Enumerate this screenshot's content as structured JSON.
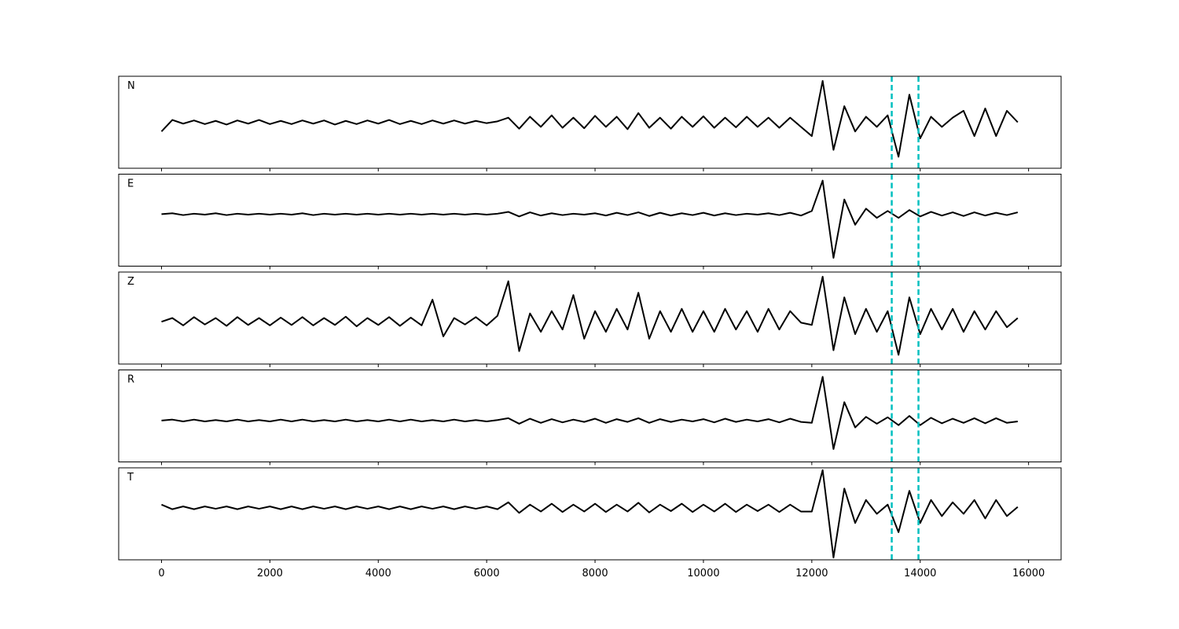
{
  "chart_data": [
    {
      "type": "line",
      "label": "N",
      "color": "#000000",
      "vlines": [
        13475,
        13968
      ],
      "vline_color": "#00bfbf",
      "xlim": [
        -790,
        16600
      ],
      "ylim": [
        -1,
        1
      ],
      "x": [
        0,
        200,
        400,
        600,
        800,
        1000,
        1200,
        1400,
        1600,
        1800,
        2000,
        2200,
        2400,
        2600,
        2800,
        3000,
        3200,
        3400,
        3600,
        3800,
        4000,
        4200,
        4400,
        4600,
        4800,
        5000,
        5200,
        5400,
        5600,
        5800,
        6000,
        6200,
        6400,
        6600,
        6800,
        7000,
        7200,
        7400,
        7600,
        7800,
        8000,
        8200,
        8400,
        8600,
        8800,
        9000,
        9200,
        9400,
        9600,
        9800,
        10000,
        10200,
        10400,
        10600,
        10800,
        11000,
        11200,
        11400,
        11600,
        11800,
        12000,
        12200,
        12400,
        12600,
        12800,
        13000,
        13200,
        13400,
        13600,
        13800,
        14000,
        14200,
        14400,
        14600,
        14800,
        15000,
        15200,
        15400,
        15600,
        15800
      ],
      "values": [
        -0.2,
        0.05,
        -0.03,
        0.04,
        -0.04,
        0.03,
        -0.05,
        0.04,
        -0.03,
        0.05,
        -0.04,
        0.03,
        -0.04,
        0.04,
        -0.03,
        0.04,
        -0.05,
        0.03,
        -0.04,
        0.04,
        -0.03,
        0.05,
        -0.04,
        0.03,
        -0.04,
        0.04,
        -0.03,
        0.04,
        -0.03,
        0.03,
        -0.02,
        0.02,
        0.1,
        -0.14,
        0.12,
        -0.1,
        0.15,
        -0.12,
        0.1,
        -0.13,
        0.14,
        -0.1,
        0.12,
        -0.15,
        0.2,
        -0.12,
        0.1,
        -0.14,
        0.12,
        -0.1,
        0.13,
        -0.12,
        0.1,
        -0.11,
        0.12,
        -0.1,
        0.1,
        -0.12,
        0.1,
        -0.1,
        -0.3,
        0.9,
        -0.6,
        0.35,
        -0.2,
        0.12,
        -0.1,
        0.15,
        -0.75,
        0.6,
        -0.35,
        0.12,
        -0.1,
        0.1,
        0.25,
        -0.3,
        0.3,
        -0.3,
        0.25,
        0.0
      ]
    },
    {
      "type": "line",
      "label": "E",
      "color": "#000000",
      "vlines": [
        13475,
        13968
      ],
      "vline_color": "#00bfbf",
      "xlim": [
        -790,
        16600
      ],
      "ylim": [
        -1,
        1
      ],
      "x": [
        0,
        200,
        400,
        600,
        800,
        1000,
        1200,
        1400,
        1600,
        1800,
        2000,
        2200,
        2400,
        2600,
        2800,
        3000,
        3200,
        3400,
        3600,
        3800,
        4000,
        4200,
        4400,
        4600,
        4800,
        5000,
        5200,
        5400,
        5600,
        5800,
        6000,
        6200,
        6400,
        6600,
        6800,
        7000,
        7200,
        7400,
        7600,
        7800,
        8000,
        8200,
        8400,
        8600,
        8800,
        9000,
        9200,
        9400,
        9600,
        9800,
        10000,
        10200,
        10400,
        10600,
        10800,
        11000,
        11200,
        11400,
        11600,
        11800,
        12000,
        12200,
        12400,
        12600,
        12800,
        13000,
        13200,
        13400,
        13600,
        13800,
        14000,
        14200,
        14400,
        14600,
        14800,
        15000,
        15200,
        15400,
        15600,
        15800
      ],
      "values": [
        0.13,
        0.15,
        0.11,
        0.14,
        0.12,
        0.15,
        0.11,
        0.14,
        0.12,
        0.14,
        0.12,
        0.14,
        0.12,
        0.15,
        0.11,
        0.14,
        0.12,
        0.14,
        0.12,
        0.14,
        0.12,
        0.14,
        0.12,
        0.14,
        0.12,
        0.14,
        0.12,
        0.14,
        0.12,
        0.14,
        0.12,
        0.14,
        0.18,
        0.08,
        0.17,
        0.1,
        0.15,
        0.11,
        0.14,
        0.12,
        0.15,
        0.1,
        0.16,
        0.11,
        0.17,
        0.09,
        0.16,
        0.1,
        0.15,
        0.11,
        0.16,
        0.1,
        0.15,
        0.11,
        0.14,
        0.12,
        0.15,
        0.11,
        0.16,
        0.1,
        0.2,
        0.86,
        -0.82,
        0.45,
        -0.1,
        0.25,
        0.05,
        0.2,
        0.05,
        0.22,
        0.08,
        0.18,
        0.1,
        0.17,
        0.09,
        0.17,
        0.1,
        0.16,
        0.11,
        0.17
      ]
    },
    {
      "type": "line",
      "label": "Z",
      "color": "#000000",
      "vlines": [
        13475,
        13968
      ],
      "vline_color": "#00bfbf",
      "xlim": [
        -790,
        16600
      ],
      "ylim": [
        -1,
        1
      ],
      "x": [
        0,
        200,
        400,
        600,
        800,
        1000,
        1200,
        1400,
        1600,
        1800,
        2000,
        2200,
        2400,
        2600,
        2800,
        3000,
        3200,
        3400,
        3600,
        3800,
        4000,
        4200,
        4400,
        4600,
        4800,
        5000,
        5200,
        5400,
        5600,
        5800,
        6000,
        6200,
        6400,
        6600,
        6800,
        7000,
        7200,
        7400,
        7600,
        7800,
        8000,
        8200,
        8400,
        8600,
        8800,
        9000,
        9200,
        9400,
        9600,
        9800,
        10000,
        10200,
        10400,
        10600,
        10800,
        11000,
        11200,
        11400,
        11600,
        11800,
        12000,
        12200,
        12400,
        12600,
        12800,
        13000,
        13200,
        13400,
        13600,
        13800,
        14000,
        14200,
        14400,
        14600,
        14800,
        15000,
        15200,
        15400,
        15600,
        15800
      ],
      "values": [
        -0.08,
        0.0,
        -0.16,
        0.02,
        -0.14,
        0.0,
        -0.17,
        0.02,
        -0.15,
        0.0,
        -0.16,
        0.01,
        -0.15,
        0.02,
        -0.16,
        0.0,
        -0.15,
        0.03,
        -0.18,
        0.0,
        -0.15,
        0.02,
        -0.17,
        0.01,
        -0.16,
        0.4,
        -0.4,
        0.0,
        -0.14,
        0.02,
        -0.16,
        0.05,
        0.8,
        -0.72,
        0.1,
        -0.3,
        0.15,
        -0.25,
        0.5,
        -0.45,
        0.15,
        -0.3,
        0.2,
        -0.25,
        0.55,
        -0.45,
        0.15,
        -0.3,
        0.2,
        -0.3,
        0.15,
        -0.3,
        0.2,
        -0.25,
        0.15,
        -0.3,
        0.2,
        -0.25,
        0.15,
        -0.1,
        -0.15,
        0.9,
        -0.7,
        0.45,
        -0.35,
        0.2,
        -0.3,
        0.15,
        -0.8,
        0.45,
        -0.35,
        0.2,
        -0.25,
        0.2,
        -0.3,
        0.15,
        -0.25,
        0.15,
        -0.2,
        0.0
      ]
    },
    {
      "type": "line",
      "label": "R",
      "color": "#000000",
      "vlines": [
        13475,
        13968
      ],
      "vline_color": "#00bfbf",
      "xlim": [
        -790,
        16600
      ],
      "ylim": [
        -1,
        1
      ],
      "x": [
        0,
        200,
        400,
        600,
        800,
        1000,
        1200,
        1400,
        1600,
        1800,
        2000,
        2200,
        2400,
        2600,
        2800,
        3000,
        3200,
        3400,
        3600,
        3800,
        4000,
        4200,
        4400,
        4600,
        4800,
        5000,
        5200,
        5400,
        5600,
        5800,
        6000,
        6200,
        6400,
        6600,
        6800,
        7000,
        7200,
        7400,
        7600,
        7800,
        8000,
        8200,
        8400,
        8600,
        8800,
        9000,
        9200,
        9400,
        9600,
        9800,
        10000,
        10200,
        10400,
        10600,
        10800,
        11000,
        11200,
        11400,
        11600,
        11800,
        12000,
        12200,
        12400,
        12600,
        12800,
        13000,
        13200,
        13400,
        13600,
        13800,
        14000,
        14200,
        14400,
        14600,
        14800,
        15000,
        15200,
        15400,
        15600,
        15800
      ],
      "values": [
        -0.1,
        -0.08,
        -0.12,
        -0.08,
        -0.12,
        -0.09,
        -0.12,
        -0.08,
        -0.12,
        -0.09,
        -0.12,
        -0.08,
        -0.12,
        -0.08,
        -0.12,
        -0.09,
        -0.12,
        -0.08,
        -0.12,
        -0.09,
        -0.12,
        -0.08,
        -0.12,
        -0.08,
        -0.12,
        -0.09,
        -0.12,
        -0.08,
        -0.12,
        -0.09,
        -0.12,
        -0.09,
        -0.05,
        -0.17,
        -0.06,
        -0.15,
        -0.07,
        -0.14,
        -0.08,
        -0.13,
        -0.06,
        -0.15,
        -0.07,
        -0.13,
        -0.05,
        -0.15,
        -0.07,
        -0.13,
        -0.08,
        -0.12,
        -0.07,
        -0.14,
        -0.06,
        -0.13,
        -0.08,
        -0.12,
        -0.07,
        -0.14,
        -0.06,
        -0.13,
        -0.15,
        0.85,
        -0.72,
        0.3,
        -0.25,
        -0.02,
        -0.17,
        -0.03,
        -0.2,
        0.0,
        -0.2,
        -0.04,
        -0.16,
        -0.06,
        -0.15,
        -0.05,
        -0.16,
        -0.05,
        -0.15,
        -0.12
      ]
    },
    {
      "type": "line",
      "label": "T",
      "color": "#000000",
      "vlines": [
        13475,
        13968
      ],
      "vline_color": "#00bfbf",
      "xlim": [
        -790,
        16600
      ],
      "ylim": [
        -1,
        1
      ],
      "xticks": [
        0,
        2000,
        4000,
        6000,
        8000,
        10000,
        12000,
        14000,
        16000
      ],
      "x": [
        0,
        200,
        400,
        600,
        800,
        1000,
        1200,
        1400,
        1600,
        1800,
        2000,
        2200,
        2400,
        2600,
        2800,
        3000,
        3200,
        3400,
        3600,
        3800,
        4000,
        4200,
        4400,
        4600,
        4800,
        5000,
        5200,
        5400,
        5600,
        5800,
        6000,
        6200,
        6400,
        6600,
        6800,
        7000,
        7200,
        7400,
        7600,
        7800,
        8000,
        8200,
        8400,
        8600,
        8800,
        9000,
        9200,
        9400,
        9600,
        9800,
        10000,
        10200,
        10400,
        10600,
        10800,
        11000,
        11200,
        11400,
        11600,
        11800,
        12000,
        12200,
        12400,
        12600,
        12800,
        13000,
        13200,
        13400,
        13600,
        13800,
        14000,
        14200,
        14400,
        14600,
        14800,
        15000,
        15200,
        15400,
        15600,
        15800
      ],
      "values": [
        0.2,
        0.1,
        0.16,
        0.1,
        0.16,
        0.11,
        0.16,
        0.1,
        0.16,
        0.11,
        0.16,
        0.1,
        0.16,
        0.1,
        0.16,
        0.11,
        0.16,
        0.1,
        0.16,
        0.11,
        0.16,
        0.1,
        0.16,
        0.1,
        0.16,
        0.11,
        0.16,
        0.1,
        0.16,
        0.11,
        0.16,
        0.1,
        0.25,
        0.02,
        0.2,
        0.05,
        0.22,
        0.04,
        0.2,
        0.05,
        0.22,
        0.04,
        0.2,
        0.05,
        0.24,
        0.03,
        0.2,
        0.06,
        0.22,
        0.04,
        0.2,
        0.05,
        0.22,
        0.04,
        0.2,
        0.06,
        0.2,
        0.04,
        0.2,
        0.05,
        0.05,
        0.95,
        -0.95,
        0.55,
        -0.2,
        0.3,
        0.0,
        0.2,
        -0.4,
        0.5,
        -0.2,
        0.3,
        -0.05,
        0.25,
        0.0,
        0.3,
        -0.1,
        0.3,
        -0.05,
        0.15
      ]
    }
  ]
}
